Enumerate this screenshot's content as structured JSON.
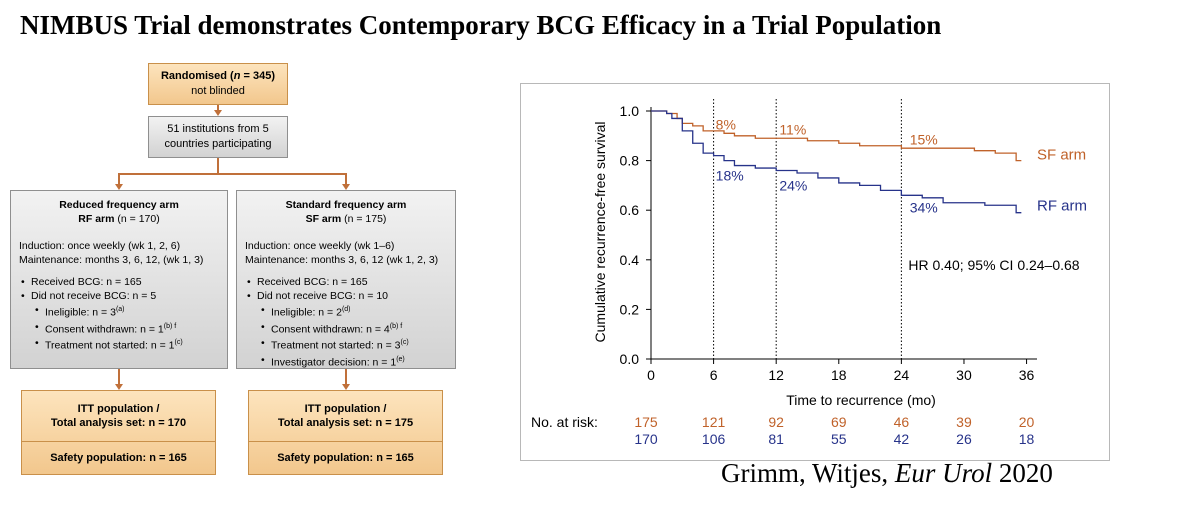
{
  "title": "NIMBUS Trial demonstrates Contemporary BCG Efficacy in a Trial Population",
  "flowchart": {
    "randomised": {
      "label": "Randomised (",
      "n_label": "n",
      "value": " = 345)",
      "sub": "not blinded"
    },
    "institutions": "51 institutions from 5 countries participating",
    "rf_arm": {
      "heading": "Reduced frequency arm",
      "short": "RF arm",
      "n_text": "(n = 170)",
      "induction": "Induction: once weekly (wk 1, 2, 6)",
      "maintenance": "Maintenance: months 3, 6, 12, (wk 1, 3)",
      "received": "Received BCG: n = 165",
      "not_received": "Did not receive BCG: n = 5",
      "subs": [
        "Ineligible: n = 3",
        "Consent withdrawn: n = 1",
        "Treatment not started: n = 1"
      ],
      "sub_notes": [
        "(a)",
        "(b) f",
        "(c)"
      ]
    },
    "sf_arm": {
      "heading": "Standard frequency arm",
      "short": "SF arm",
      "n_text": "(n = 175)",
      "induction": "Induction: once weekly (wk 1–6)",
      "maintenance": "Maintenance: months 3, 6, 12 (wk 1, 2, 3)",
      "received": "Received BCG: n = 165",
      "not_received": "Did not receive BCG: n = 10",
      "subs": [
        "Ineligible: n = 2",
        "Consent withdrawn: n = 4",
        "Treatment not started: n = 3",
        "Investigator decision: n = 1"
      ],
      "sub_notes": [
        "(d)",
        "(b) f",
        "(c)",
        "(e)"
      ]
    },
    "itt_rf": {
      "line1": "ITT population /",
      "line2": "Total analysis set: n = 170",
      "safety": "Safety population: n = 165"
    },
    "itt_sf": {
      "line1": "ITT population /",
      "line2": "Total analysis set: n = 175",
      "safety": "Safety population: n = 165"
    }
  },
  "chart_data": {
    "type": "line",
    "title": "",
    "ylabel": "Cumulative recurrence-free survival",
    "xlabel": "Time to recurrence (mo)",
    "xlim": [
      0,
      37
    ],
    "ylim": [
      0,
      1.0
    ],
    "xticks": [
      0,
      6,
      12,
      18,
      24,
      30,
      36
    ],
    "yticks": [
      0.0,
      0.2,
      0.4,
      0.6,
      0.8,
      1.0
    ],
    "ytick_labels": [
      "0.0",
      "0.2",
      "0.4",
      "0.6",
      "0.8",
      "1.0"
    ],
    "reference_lines_x": [
      6,
      12,
      24
    ],
    "series": [
      {
        "name": "SF arm",
        "color": "#c0622a",
        "x": [
          0,
          1.5,
          2.5,
          3,
          4,
          5,
          6,
          7,
          8,
          9,
          10,
          12,
          15,
          18,
          20,
          22,
          24,
          28,
          31,
          33,
          35,
          35.5
        ],
        "y": [
          1.0,
          0.99,
          0.97,
          0.95,
          0.94,
          0.92,
          0.92,
          0.91,
          0.9,
          0.9,
          0.89,
          0.89,
          0.88,
          0.87,
          0.86,
          0.86,
          0.85,
          0.85,
          0.84,
          0.83,
          0.8,
          0.8
        ]
      },
      {
        "name": "RF arm",
        "color": "#27338a",
        "x": [
          0,
          1.5,
          2,
          3,
          4,
          5,
          6,
          7,
          8,
          10,
          12,
          14,
          16,
          18,
          20,
          22,
          24,
          26,
          28,
          30,
          32,
          34,
          35,
          35.5
        ],
        "y": [
          1.0,
          0.99,
          0.97,
          0.92,
          0.87,
          0.83,
          0.82,
          0.8,
          0.78,
          0.77,
          0.76,
          0.75,
          0.73,
          0.71,
          0.7,
          0.68,
          0.66,
          0.65,
          0.63,
          0.63,
          0.62,
          0.62,
          0.59,
          0.59
        ]
      }
    ],
    "annotations": [
      {
        "text": "8%",
        "x": 6.2,
        "y": 0.925,
        "series": "SF arm"
      },
      {
        "text": "11%",
        "x": 12.3,
        "y": 0.905,
        "series": "SF arm"
      },
      {
        "text": "15%",
        "x": 24.8,
        "y": 0.865,
        "series": "SF arm"
      },
      {
        "text": "18%",
        "x": 6.2,
        "y": 0.72,
        "series": "RF arm"
      },
      {
        "text": "24%",
        "x": 12.3,
        "y": 0.68,
        "series": "RF arm"
      },
      {
        "text": "34%",
        "x": 24.8,
        "y": 0.59,
        "series": "RF arm"
      }
    ],
    "hr_text": "HR 0.40; 95% CI 0.24–0.68",
    "at_risk": {
      "label": "No. at risk:",
      "times": [
        0,
        6,
        12,
        18,
        24,
        30,
        36
      ],
      "rows": [
        {
          "arm": "SF arm",
          "values": [
            175,
            121,
            92,
            69,
            46,
            39,
            20
          ]
        },
        {
          "arm": "RF arm",
          "values": [
            170,
            106,
            81,
            55,
            42,
            26,
            18
          ]
        }
      ]
    }
  },
  "citation": {
    "authors": "Grimm, Witjes, ",
    "journal": "Eur Urol",
    "year": " 2020"
  }
}
